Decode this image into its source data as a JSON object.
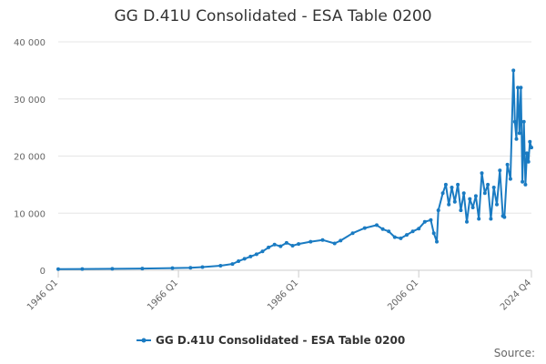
{
  "title": "GG D.41U Consolidated - ESA Table 0200",
  "source_label": "Source:",
  "colors": {
    "series": "#1a7bc2",
    "grid": "#e6e6e6",
    "axis": "#cccccc"
  },
  "chart_data": {
    "type": "line",
    "title": "GG D.41U Consolidated - ESA Table 0200",
    "x_tick_labels": [
      "1946 Q1",
      "1966 Q1",
      "1986 Q1",
      "2006 Q1",
      "2024 Q4"
    ],
    "y_tick_labels": [
      "0",
      "10 000",
      "20 000",
      "30 000",
      "40 000"
    ],
    "y_ticks": [
      0,
      10000,
      20000,
      30000,
      40000
    ],
    "ylim": [
      0,
      40000
    ],
    "xlim": [
      "1946 Q1",
      "2024 Q4"
    ],
    "grid": true,
    "legend": "bottom",
    "series": [
      {
        "name": "GG D.41U Consolidated - ESA Table 0200",
        "points": [
          [
            "1946 Q1",
            200
          ],
          [
            "1950 Q1",
            220
          ],
          [
            "1955 Q1",
            260
          ],
          [
            "1960 Q1",
            300
          ],
          [
            "1965 Q1",
            380
          ],
          [
            "1968 Q1",
            450
          ],
          [
            "1970 Q1",
            550
          ],
          [
            "1973 Q1",
            800
          ],
          [
            "1975 Q1",
            1100
          ],
          [
            "1976 Q1",
            1600
          ],
          [
            "1977 Q1",
            2000
          ],
          [
            "1978 Q1",
            2400
          ],
          [
            "1979 Q1",
            2800
          ],
          [
            "1980 Q1",
            3300
          ],
          [
            "1981 Q1",
            4000
          ],
          [
            "1982 Q1",
            4500
          ],
          [
            "1983 Q1",
            4200
          ],
          [
            "1984 Q1",
            4800
          ],
          [
            "1985 Q1",
            4300
          ],
          [
            "1986 Q1",
            4600
          ],
          [
            "1988 Q1",
            5000
          ],
          [
            "1990 Q1",
            5300
          ],
          [
            "1992 Q1",
            4700
          ],
          [
            "1993 Q1",
            5200
          ],
          [
            "1995 Q1",
            6500
          ],
          [
            "1997 Q1",
            7400
          ],
          [
            "1999 Q1",
            7900
          ],
          [
            "2000 Q1",
            7200
          ],
          [
            "2001 Q1",
            6800
          ],
          [
            "2002 Q1",
            5800
          ],
          [
            "2003 Q1",
            5600
          ],
          [
            "2004 Q1",
            6200
          ],
          [
            "2005 Q1",
            6800
          ],
          [
            "2006 Q1",
            7300
          ],
          [
            "2007 Q1",
            8500
          ],
          [
            "2008 Q1",
            8800
          ],
          [
            "2008 Q3",
            6500
          ],
          [
            "2009 Q1",
            5000
          ],
          [
            "2009 Q2",
            10500
          ],
          [
            "2010 Q1",
            13500
          ],
          [
            "2010 Q3",
            15000
          ],
          [
            "2011 Q1",
            11500
          ],
          [
            "2011 Q3",
            14500
          ],
          [
            "2012 Q1",
            12000
          ],
          [
            "2012 Q3",
            15000
          ],
          [
            "2013 Q1",
            10500
          ],
          [
            "2013 Q3",
            13500
          ],
          [
            "2014 Q1",
            8500
          ],
          [
            "2014 Q3",
            12500
          ],
          [
            "2015 Q1",
            11000
          ],
          [
            "2015 Q3",
            13000
          ],
          [
            "2016 Q1",
            9000
          ],
          [
            "2016 Q3",
            17000
          ],
          [
            "2017 Q1",
            13500
          ],
          [
            "2017 Q3",
            15000
          ],
          [
            "2018 Q1",
            9000
          ],
          [
            "2018 Q3",
            14500
          ],
          [
            "2019 Q1",
            11500
          ],
          [
            "2019 Q3",
            17500
          ],
          [
            "2020 Q1",
            9500
          ],
          [
            "2020 Q2",
            9300
          ],
          [
            "2020 Q4",
            18500
          ],
          [
            "2021 Q2",
            16000
          ],
          [
            "2021 Q4",
            35000
          ],
          [
            "2022 Q1",
            26000
          ],
          [
            "2022 Q2",
            23000
          ],
          [
            "2022 Q3",
            32000
          ],
          [
            "2022 Q4",
            24000
          ],
          [
            "2023 Q1",
            32000
          ],
          [
            "2023 Q2",
            15500
          ],
          [
            "2023 Q3",
            26000
          ],
          [
            "2023 Q4",
            15000
          ],
          [
            "2024 Q1",
            20500
          ],
          [
            "2024 Q2",
            19000
          ],
          [
            "2024 Q3",
            22500
          ],
          [
            "2024 Q4",
            21500
          ]
        ]
      }
    ]
  }
}
